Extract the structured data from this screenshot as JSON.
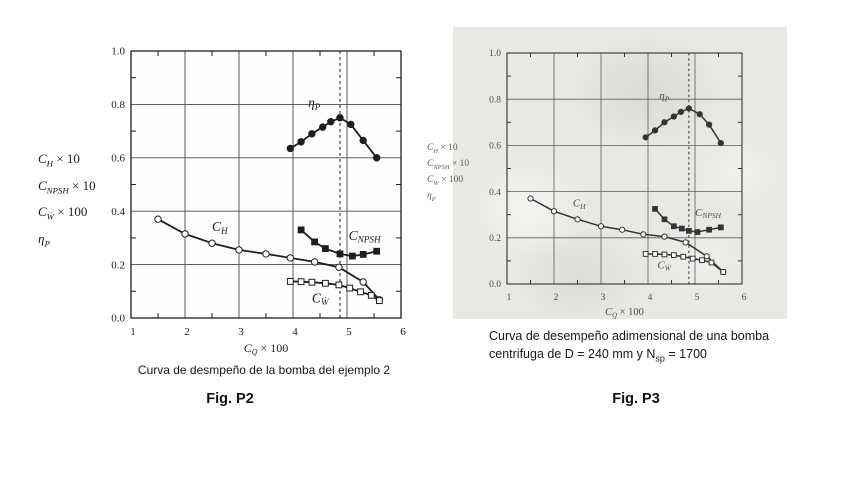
{
  "page": {
    "background": "#ffffff",
    "right_paper_color": "#e9e8e4"
  },
  "figures": [
    {
      "caption": "Curva de desmpeño de la bomba del ejemplo 2",
      "fig_label": "Fig. P2",
      "coef_labels": [
        {
          "main": "C",
          "sub": "H",
          "rest": " × 10"
        },
        {
          "main": "C",
          "sub": "NPSH",
          "rest": " × 10"
        },
        {
          "main": "C",
          "sub": "Ẇ",
          "rest": " × 100"
        },
        {
          "main": "η",
          "sub": "P",
          "rest": ""
        }
      ]
    },
    {
      "caption_line1": "Curva de desempeño adimensional de una bomba",
      "caption_line2_pre": "centrifuga de D = 240 mm y N",
      "caption_line2_sub": "sp",
      "caption_line2_post": " = 1700",
      "fig_label": "Fig. P3",
      "coef_labels": [
        {
          "main": "C",
          "sub": "H",
          "rest": " × 10"
        },
        {
          "main": "C",
          "sub": "NPSH",
          "rest": " × 10"
        },
        {
          "main": "C",
          "sub": "Ẇ",
          "rest": " × 100"
        },
        {
          "main": "η",
          "sub": "P",
          "rest": ""
        }
      ]
    }
  ],
  "chart_data": [
    {
      "type": "line",
      "title": "Curva de desmpeño de la bomba del ejemplo 2",
      "xlabel": "C_Q × 100",
      "xlabel_parts": {
        "main": "C",
        "sub": "Q",
        "rest": " × 100"
      },
      "ylabel_lines": [
        "C_H × 10",
        "C_NPSH × 10",
        "C_Ẇ × 100",
        "η_P"
      ],
      "xlim": [
        1,
        6
      ],
      "ylim": [
        0,
        1
      ],
      "xticks": [
        1,
        2,
        3,
        4,
        5,
        6
      ],
      "xtick_labels": [
        "1",
        "2",
        "3",
        "4",
        "5",
        "6"
      ],
      "yticks": [
        0,
        0.2,
        0.4,
        0.6,
        0.8,
        1
      ],
      "ytick_labels": [
        "0.0",
        "0.2",
        "0.4",
        "0.6",
        "0.8",
        "1.0"
      ],
      "xminor": [
        1.5,
        2.5,
        3.5,
        4.5,
        5.5
      ],
      "yminor": [
        0.1,
        0.3,
        0.5,
        0.7,
        0.9
      ],
      "grid": true,
      "legend": "inline-labels",
      "dashed_x": 4.87,
      "colors": {
        "ink": "#1e1e1e",
        "grid": "#4a4a4a",
        "text": "#1e1e1e",
        "plot_bg": "#fefefd"
      },
      "series": [
        {
          "name": "C_H",
          "label": {
            "main": "C",
            "sub": "H"
          },
          "marker": "circle_open",
          "label_at": [
            2.5,
            0.325
          ],
          "x": [
            1.5,
            2.0,
            2.5,
            3.0,
            3.5,
            3.95,
            4.4,
            4.85,
            5.3,
            5.6
          ],
          "y": [
            0.37,
            0.315,
            0.28,
            0.255,
            0.24,
            0.225,
            0.21,
            0.19,
            0.135,
            0.068
          ]
        },
        {
          "name": "eta_P",
          "label": {
            "main": "η",
            "sub": "P"
          },
          "marker": "circle_filled",
          "label_at": [
            4.28,
            0.79
          ],
          "x": [
            3.95,
            4.15,
            4.35,
            4.55,
            4.7,
            4.87,
            5.07,
            5.3,
            5.55
          ],
          "y": [
            0.635,
            0.66,
            0.69,
            0.715,
            0.735,
            0.75,
            0.725,
            0.665,
            0.6
          ]
        },
        {
          "name": "C_NPSH",
          "label": {
            "main": "C",
            "sub": "NPSH"
          },
          "marker": "square_filled",
          "label_at": [
            5.03,
            0.292
          ],
          "x": [
            4.15,
            4.4,
            4.6,
            4.87,
            5.1,
            5.3,
            5.55
          ],
          "y": [
            0.33,
            0.285,
            0.26,
            0.24,
            0.232,
            0.238,
            0.25
          ]
        },
        {
          "name": "C_W_dot",
          "label": {
            "main": "C",
            "sub": "Ẇ"
          },
          "marker": "square_open",
          "label_at": [
            4.35,
            0.058
          ],
          "x": [
            3.95,
            4.15,
            4.35,
            4.6,
            4.85,
            5.05,
            5.25,
            5.45,
            5.6
          ],
          "y": [
            0.137,
            0.136,
            0.134,
            0.13,
            0.124,
            0.112,
            0.098,
            0.085,
            0.065
          ]
        }
      ]
    },
    {
      "type": "line",
      "title": "Curva de desempeño adimensional de una bomba centrifuga de D = 240 mm y Nsp = 1700",
      "xlabel": "C_Q × 100",
      "xlabel_parts": {
        "main": "C",
        "sub": "Q",
        "rest": " × 100"
      },
      "ylabel_lines": [
        "C_H × 10",
        "C_NPSH × 10",
        "C_Ẇ × 100",
        "η_P"
      ],
      "xlim": [
        1,
        6
      ],
      "ylim": [
        0,
        1
      ],
      "xticks": [
        1,
        2,
        3,
        4,
        5,
        6
      ],
      "xtick_labels": [
        "1",
        "2",
        "3",
        "4",
        "5",
        "6"
      ],
      "yticks": [
        0,
        0.2,
        0.4,
        0.6,
        0.8,
        1
      ],
      "ytick_labels": [
        "0.0",
        "0.2",
        "0.4",
        "0.6",
        "0.8",
        "1.0"
      ],
      "xminor": [
        1.5,
        2.5,
        3.5,
        4.5,
        5.5
      ],
      "yminor": [
        0.1,
        0.3,
        0.5,
        0.7,
        0.9
      ],
      "grid": true,
      "legend": "inline-labels",
      "dashed_x": 4.87,
      "colors": {
        "ink": "#343434",
        "grid": "#5c5c5c",
        "text": "#4f4f4f",
        "plot_bg": "none"
      },
      "series": [
        {
          "name": "C_H",
          "label": {
            "main": "C",
            "sub": "H"
          },
          "marker": "circle_open",
          "label_at": [
            2.4,
            0.335
          ],
          "x": [
            1.5,
            2.0,
            2.5,
            3.0,
            3.45,
            3.9,
            4.35,
            4.8,
            5.25,
            5.6
          ],
          "y": [
            0.37,
            0.315,
            0.28,
            0.25,
            0.235,
            0.215,
            0.205,
            0.18,
            0.12,
            0.052
          ]
        },
        {
          "name": "eta_P",
          "label": {
            "main": "η",
            "sub": "P"
          },
          "marker": "circle_filled",
          "label_at": [
            4.24,
            0.8
          ],
          "x": [
            3.95,
            4.15,
            4.35,
            4.55,
            4.7,
            4.87,
            5.1,
            5.3,
            5.55
          ],
          "y": [
            0.635,
            0.665,
            0.7,
            0.725,
            0.745,
            0.76,
            0.735,
            0.69,
            0.61
          ]
        },
        {
          "name": "C_NPSH",
          "label": {
            "main": "C",
            "sub": "NPSH"
          },
          "marker": "square_filled",
          "label_at": [
            5.0,
            0.295
          ],
          "x": [
            4.15,
            4.35,
            4.55,
            4.72,
            4.87,
            5.05,
            5.3,
            5.55
          ],
          "y": [
            0.325,
            0.28,
            0.25,
            0.24,
            0.23,
            0.225,
            0.235,
            0.245
          ]
        },
        {
          "name": "C_W_dot",
          "label": {
            "main": "C",
            "sub": "Ẇ"
          },
          "marker": "square_open",
          "label_at": [
            4.2,
            0.068
          ],
          "x": [
            3.95,
            4.15,
            4.35,
            4.55,
            4.75,
            4.95,
            5.15,
            5.35,
            5.6
          ],
          "y": [
            0.13,
            0.13,
            0.128,
            0.125,
            0.118,
            0.11,
            0.103,
            0.093,
            0.052
          ]
        }
      ]
    }
  ]
}
